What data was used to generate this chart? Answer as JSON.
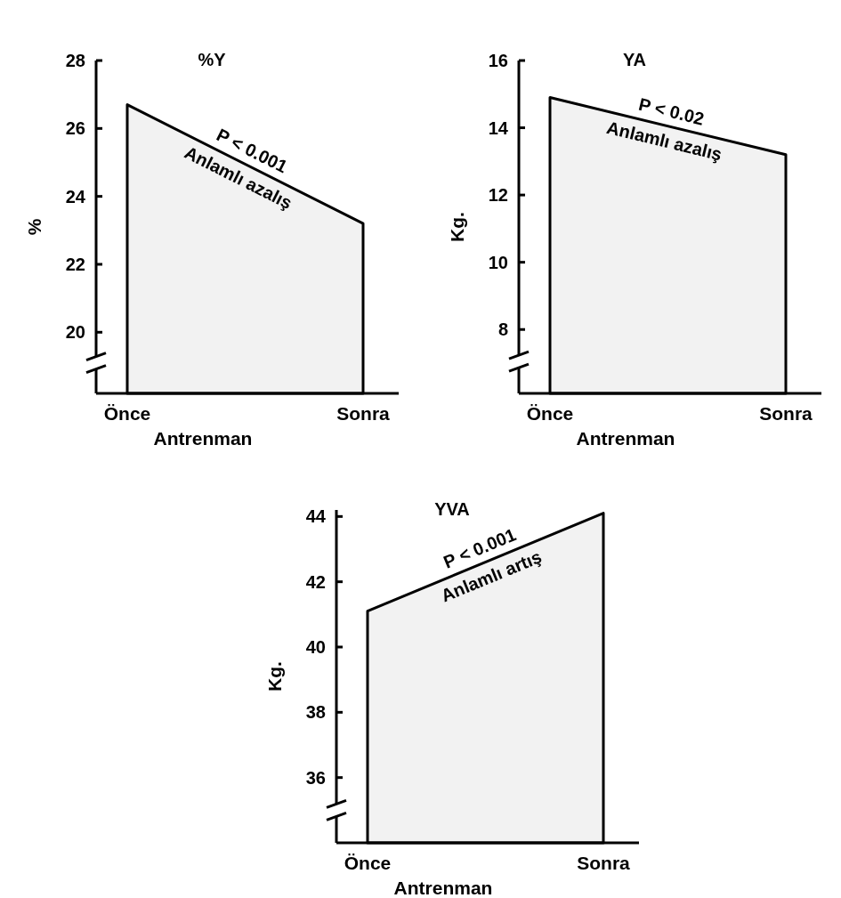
{
  "chart_data": [
    {
      "type": "area",
      "title": "%Y",
      "ylabel": "%",
      "xlabel": "Antrenman",
      "categories": [
        "Önce",
        "Sonra"
      ],
      "series": [
        {
          "color": "#000000",
          "values": [
            26.7,
            23.2
          ]
        }
      ],
      "ylim": [
        18.2,
        28
      ],
      "yticks": [
        20,
        22,
        24,
        26,
        28
      ],
      "annotations": [
        "P < 0.001",
        "Anlamlı azalış"
      ]
    },
    {
      "type": "area",
      "title": "YA",
      "ylabel": "Kg.",
      "xlabel": "Antrenman",
      "categories": [
        "Önce",
        "Sonra"
      ],
      "series": [
        {
          "color": "#000000",
          "values": [
            14.9,
            13.2
          ]
        }
      ],
      "ylim": [
        6.1,
        16
      ],
      "yticks": [
        8,
        10,
        12,
        14,
        16
      ],
      "annotations": [
        "P < 0.02",
        "Anlamlı azalış"
      ]
    },
    {
      "type": "area",
      "title": "YVA",
      "ylabel": "Kg.",
      "xlabel": "Antrenman",
      "categories": [
        "Önce",
        "Sonra"
      ],
      "series": [
        {
          "color": "#000000",
          "values": [
            41.1,
            44.1
          ]
        }
      ],
      "ylim": [
        34,
        44.2
      ],
      "yticks": [
        36,
        38,
        40,
        42,
        44
      ],
      "annotations": [
        "P < 0.001",
        "Anlamlı artış"
      ]
    }
  ]
}
